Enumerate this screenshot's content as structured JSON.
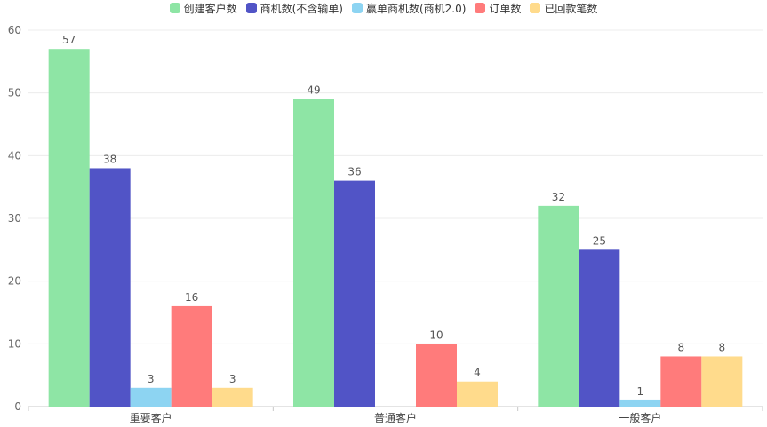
{
  "chart_data": {
    "type": "bar",
    "categories": [
      "重要客户",
      "普通客户",
      "一般客户"
    ],
    "series": [
      {
        "name": "创建客户数",
        "values": [
          57,
          49,
          32
        ],
        "color": "#8ee5a5"
      },
      {
        "name": "商机数(不含输单)",
        "values": [
          38,
          36,
          25
        ],
        "color": "#5154c6"
      },
      {
        "name": "赢单商机数(商机2.0)",
        "values": [
          3,
          0,
          1
        ],
        "color": "#8dd4f2"
      },
      {
        "name": "订单数",
        "values": [
          16,
          10,
          8
        ],
        "color": "#ff7b7b"
      },
      {
        "name": "已回款笔数",
        "values": [
          3,
          4,
          8
        ],
        "color": "#ffdb8c"
      }
    ],
    "ylim": [
      0,
      60
    ],
    "yticks": [
      0,
      10,
      20,
      30,
      40,
      50,
      60
    ],
    "grid": true,
    "legend_position": "top-center",
    "title": "",
    "xlabel": "",
    "ylabel": ""
  }
}
